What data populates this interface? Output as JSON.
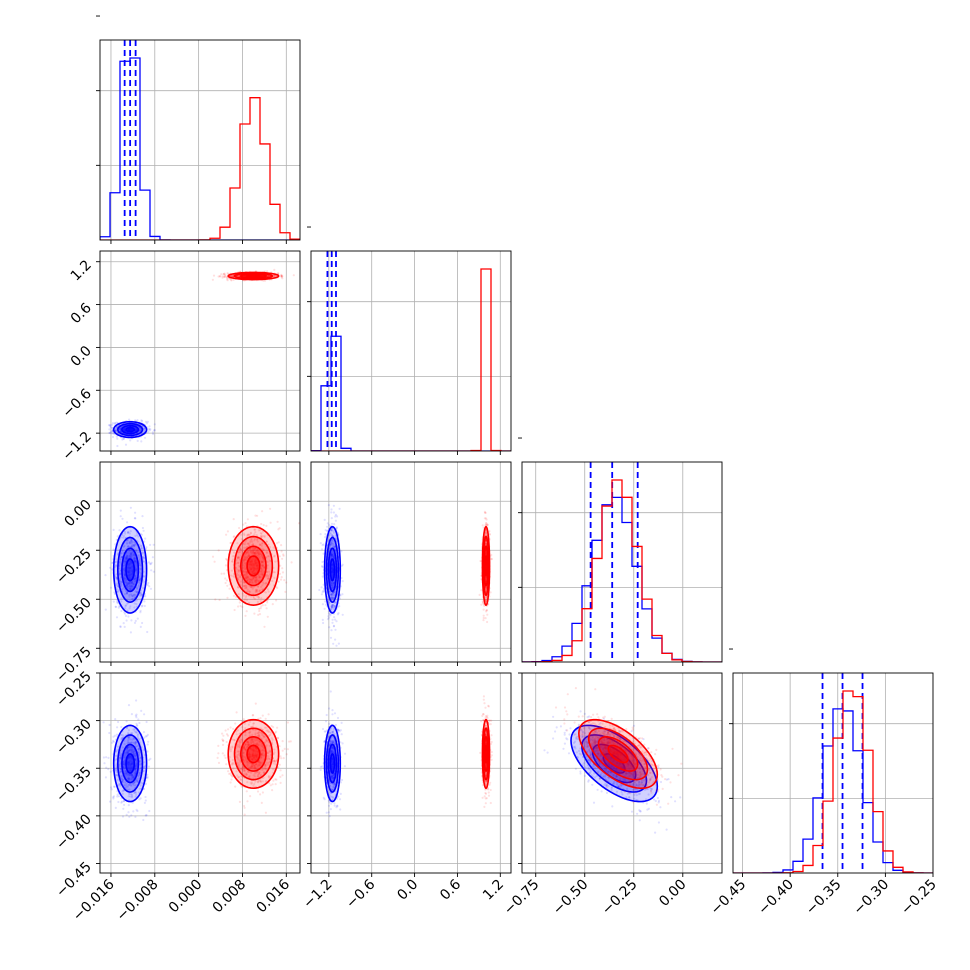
{
  "chart_data": {
    "type": "corner",
    "grid": true,
    "legend": "none",
    "parameters": [
      {
        "ticks": [
          -0.016,
          -0.008,
          0.0,
          0.008,
          0.016
        ],
        "tick_labels": [
          "−0.016",
          "−0.008",
          "0.000",
          "0.008",
          "0.016"
        ],
        "range": [
          -0.018,
          0.0185
        ]
      },
      {
        "ticks": [
          -1.2,
          -0.6,
          0.0,
          0.6,
          1.2
        ],
        "tick_labels": [
          "−1.2",
          "−0.6",
          "0.0",
          "0.6",
          "1.2"
        ],
        "range": [
          -1.45,
          1.35
        ]
      },
      {
        "ticks": [
          -0.75,
          -0.5,
          -0.25,
          0.0
        ],
        "tick_labels": [
          "−0.75",
          "−0.50",
          "−0.25",
          "0.00"
        ],
        "range": [
          -0.82,
          0.2
        ]
      },
      {
        "ticks": [
          -0.45,
          -0.4,
          -0.35,
          -0.3,
          -0.25
        ],
        "tick_labels": [
          "−0.45",
          "−0.40",
          "−0.35",
          "−0.30",
          "−0.25"
        ],
        "range": [
          -0.46,
          -0.25
        ]
      }
    ],
    "series": [
      {
        "color": "#0000ff",
        "means": [
          -0.0125,
          -1.15,
          -0.35,
          -0.345
        ],
        "sds": [
          0.0015,
          0.055,
          0.11,
          0.02
        ],
        "quantiles": [
          [
            -0.0135,
            -0.0125,
            -0.0115
          ],
          [
            -1.22,
            -1.16,
            -1.1
          ],
          [
            -0.47,
            -0.36,
            -0.23
          ],
          [
            -0.366,
            -0.345,
            -0.324
          ]
        ]
      },
      {
        "color": "#ff0000",
        "means": [
          0.01,
          1.0,
          -0.33,
          -0.335
        ],
        "sds": [
          0.0023,
          0.025,
          0.1,
          0.018
        ]
      }
    ],
    "correlations": [
      {
        "params": [
          2,
          3
        ],
        "series": [
          -0.6,
          -0.6
        ]
      }
    ]
  }
}
